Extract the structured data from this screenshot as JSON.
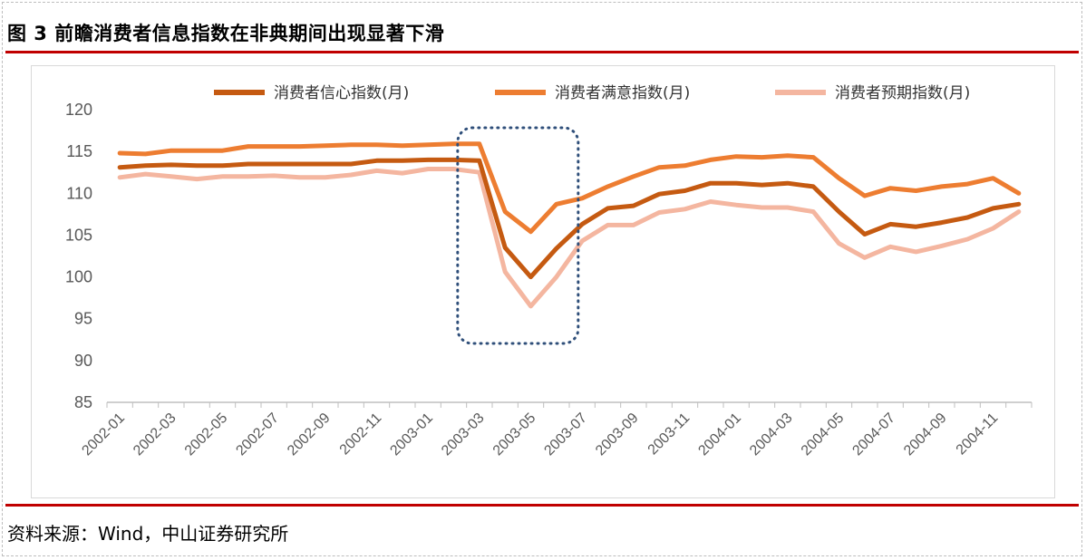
{
  "figure": {
    "title": "图 3  前瞻消费者信息指数在非典期间出现显著下滑",
    "source": "资料来源：Wind，中山证券研究所"
  },
  "chart_data": {
    "type": "line",
    "title": "",
    "xlabel": "",
    "ylabel": "",
    "ylim": [
      85,
      120
    ],
    "yticks": [
      85,
      90,
      95,
      100,
      105,
      110,
      115,
      120
    ],
    "legend_position": "top",
    "grid": false,
    "x_tick_labels": [
      "2002-01",
      "2002-03",
      "2002-05",
      "2002-07",
      "2002-09",
      "2002-11",
      "2003-01",
      "2003-03",
      "2003-05",
      "2003-07",
      "2003-09",
      "2003-11",
      "2004-01",
      "2004-03",
      "2004-05",
      "2004-07",
      "2004-09",
      "2004-11"
    ],
    "x": [
      "2002-01",
      "2002-02",
      "2002-03",
      "2002-04",
      "2002-05",
      "2002-06",
      "2002-07",
      "2002-08",
      "2002-09",
      "2002-10",
      "2002-11",
      "2002-12",
      "2003-01",
      "2003-02",
      "2003-03",
      "2003-04",
      "2003-05",
      "2003-06",
      "2003-07",
      "2003-08",
      "2003-09",
      "2003-10",
      "2003-11",
      "2003-12",
      "2004-01",
      "2004-02",
      "2004-03",
      "2004-04",
      "2004-05",
      "2004-06",
      "2004-07",
      "2004-08",
      "2004-09",
      "2004-10",
      "2004-11",
      "2004-12"
    ],
    "series": [
      {
        "name": "消费者信心指数(月)",
        "color": "#c55a11",
        "values": [
          113.1,
          113.3,
          113.4,
          113.3,
          113.3,
          113.5,
          113.5,
          113.5,
          113.5,
          113.5,
          113.9,
          113.9,
          114.0,
          114.0,
          113.9,
          103.5,
          100.0,
          103.4,
          106.3,
          108.2,
          108.5,
          109.9,
          110.3,
          111.2,
          111.2,
          111.0,
          111.2,
          110.8,
          107.8,
          105.1,
          106.3,
          106.0,
          106.5,
          107.1,
          108.2,
          108.7
        ]
      },
      {
        "name": "消费者满意指数(月)",
        "color": "#ed7d31",
        "values": [
          114.8,
          114.7,
          115.1,
          115.1,
          115.1,
          115.6,
          115.6,
          115.6,
          115.7,
          115.8,
          115.8,
          115.7,
          115.8,
          115.9,
          115.9,
          107.8,
          105.4,
          108.7,
          109.4,
          110.8,
          112.0,
          113.1,
          113.3,
          114.0,
          114.4,
          114.3,
          114.5,
          114.3,
          111.8,
          109.7,
          110.6,
          110.3,
          110.8,
          111.1,
          111.8,
          110.0
        ]
      },
      {
        "name": "消费者预期指数(月)",
        "color": "#f4b6a0",
        "values": [
          111.9,
          112.3,
          112.0,
          111.7,
          112.0,
          112.0,
          112.1,
          111.9,
          111.9,
          112.2,
          112.7,
          112.4,
          112.9,
          112.9,
          112.5,
          100.6,
          96.5,
          100.0,
          104.3,
          106.2,
          106.2,
          107.7,
          108.1,
          109.0,
          108.6,
          108.3,
          108.3,
          107.8,
          104.0,
          102.3,
          103.6,
          103.0,
          103.7,
          104.5,
          105.8,
          107.8
        ]
      }
    ],
    "highlight": {
      "from": "2003-03",
      "to": "2003-06"
    }
  }
}
